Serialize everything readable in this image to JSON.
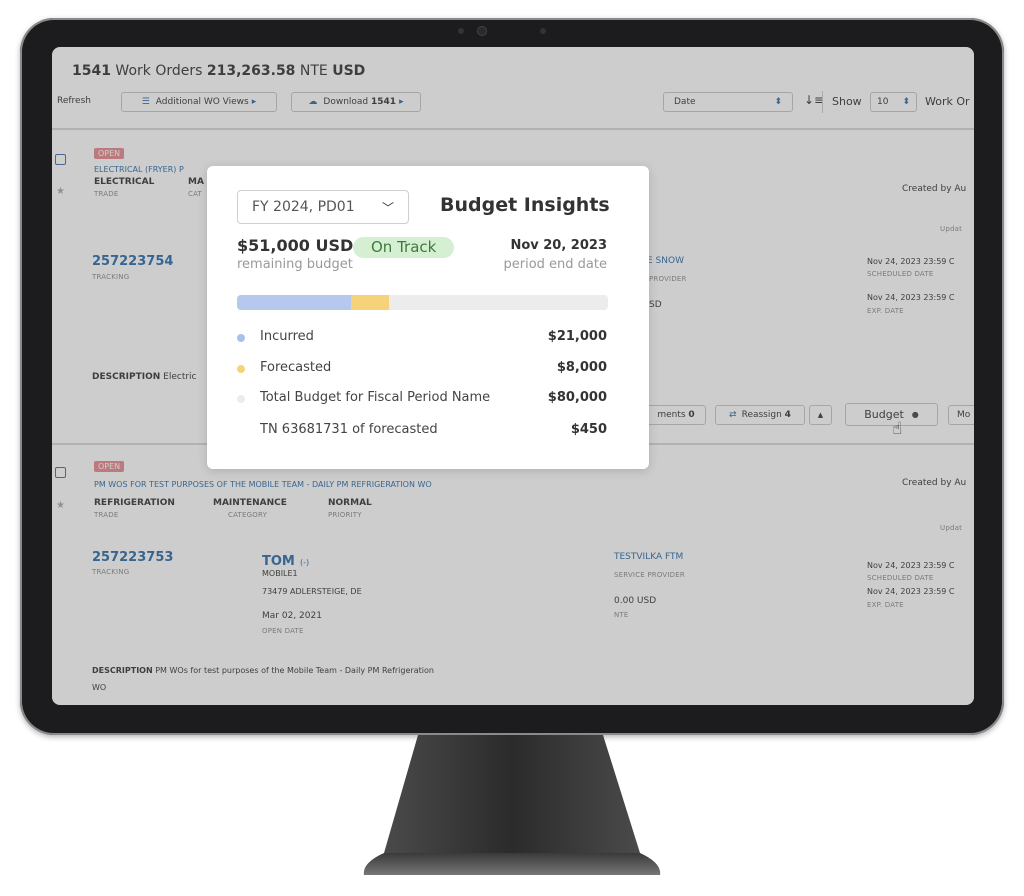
{
  "header": {
    "count": "1541",
    "label1": "Work Orders",
    "amount": "213,263.58",
    "label2": "NTE",
    "currency": "USD"
  },
  "toolbar": {
    "refresh": "Refresh",
    "views": "Additional WO Views",
    "download": "Download",
    "download_count": "1541",
    "sort": "Date",
    "show": "Show",
    "page_size": "10",
    "per_page": "Work Or"
  },
  "work_orders": [
    {
      "status": "OPEN",
      "title": "ELECTRICAL (FRYER) P",
      "trade": "ELECTRICAL",
      "trade_label": "TRADE",
      "category": "MA",
      "category_label": "CAT",
      "tracking": "257223754",
      "tracking_label": "TRACKING",
      "provider": "E SNOW",
      "provider_label": "PROVIDER",
      "nte": "SD",
      "created": "Created by Au",
      "updated": "Updat",
      "scheduled": "Nov 24, 2023 23:59 C",
      "scheduled_label": "SCHEDULED DATE",
      "expires": "Nov 24, 2023 23:59 C",
      "expires_label": "EXP. DATE",
      "description_label": "DESCRIPTION",
      "description": "Electric",
      "actions": {
        "comments": "ments",
        "comments_count": "0",
        "reassign": "Reassign",
        "reassign_count": "4",
        "budget": "Budget",
        "more": "Mo"
      }
    },
    {
      "status": "OPEN",
      "title": "PM WOS FOR TEST PURPOSES OF THE MOBILE TEAM - DAILY PM REFRIGERATION WO",
      "trade": "REFRIGERATION",
      "trade_label": "TRADE",
      "category": "MAINTENANCE",
      "category_label": "CATEGORY",
      "priority": "NORMAL",
      "priority_label": "PRIORITY",
      "tracking": "257223753",
      "tracking_label": "TRACKING",
      "location": "TOM",
      "location_code": "(-)",
      "store": "MOBILE1",
      "address": "73479 ADLERSTEIGE, DE",
      "open_date": "Mar 02, 2021",
      "open_date_label": "OPEN DATE",
      "provider": "TESTVILKA FTM",
      "provider_label": "SERVICE PROVIDER",
      "nte": "0.00 USD",
      "nte_label": "NTE",
      "created": "Created by Au",
      "updated": "Updat",
      "scheduled": "Nov 24, 2023 23:59 C",
      "scheduled_label": "SCHEDULED DATE",
      "expires": "Nov 24, 2023 23:59 C",
      "expires_label": "EXP. DATE",
      "description_label": "DESCRIPTION",
      "description": "PM WOs for test purposes of the Mobile Team - Daily PM Refrigeration",
      "description_end": "WO"
    }
  ],
  "budget_popup": {
    "period": "FY 2024, PD01",
    "title": "Budget Insights",
    "remaining": "$51,000 USD",
    "status": "On Track",
    "remaining_label": "remaining budget",
    "end_date": "Nov 20, 2023",
    "end_date_label": "period end date",
    "rows": [
      {
        "label": "Incurred",
        "amount": "$21,000"
      },
      {
        "label": "Forecasted",
        "amount": "$8,000"
      },
      {
        "label": "Total Budget for Fiscal Period Name",
        "amount": "$80,000"
      },
      {
        "label": "TN 63681731 of forecasted",
        "amount": "$450"
      }
    ]
  }
}
